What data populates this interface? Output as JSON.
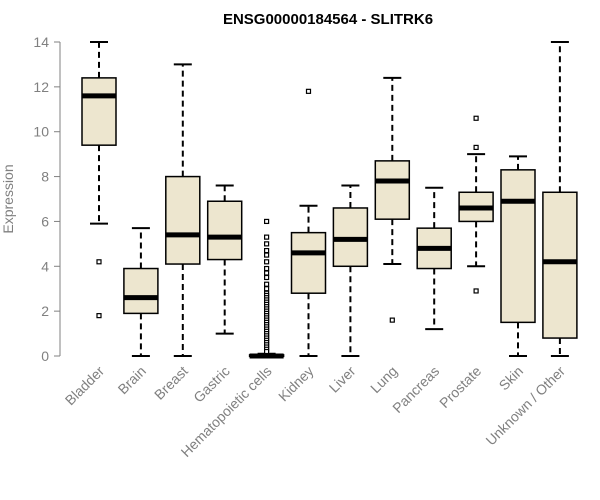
{
  "chart_data": {
    "type": "boxplot",
    "title": "ENSG00000184564 - SLITRK6",
    "xlabel": "",
    "ylabel": "Expression",
    "ylim": [
      0,
      14
    ],
    "yticks": [
      "0",
      "2",
      "4",
      "6",
      "8",
      "10",
      "12",
      "14"
    ],
    "grid": false,
    "colors": {
      "box_fill": "#ede6cf",
      "line": "#000000",
      "axis_text": "#808080"
    },
    "categories": [
      "Bladder",
      "Brain",
      "Breast",
      "Gastric",
      "Hematopoietic cells",
      "Kidney",
      "Liver",
      "Lung",
      "Pancreas",
      "Prostate",
      "Skin",
      "Unknown / Other"
    ],
    "boxes": [
      {
        "category": "Bladder",
        "min": 5.9,
        "q1": 9.4,
        "median": 11.6,
        "q3": 12.4,
        "max": 14.0,
        "outliers": [
          4.2,
          1.8
        ]
      },
      {
        "category": "Brain",
        "min": 0.0,
        "q1": 1.9,
        "median": 2.6,
        "q3": 3.9,
        "max": 5.7,
        "outliers": []
      },
      {
        "category": "Breast",
        "min": 0.0,
        "q1": 4.1,
        "median": 5.4,
        "q3": 8.0,
        "max": 13.0,
        "outliers": []
      },
      {
        "category": "Gastric",
        "min": 1.0,
        "q1": 4.3,
        "median": 5.3,
        "q3": 6.9,
        "max": 7.6,
        "outliers": []
      },
      {
        "category": "Hematopoietic cells",
        "min": 0.0,
        "q1": 0.0,
        "median": 0.0,
        "q3": 0.05,
        "max": 0.1,
        "outliers": [
          6.0,
          5.3,
          5.0,
          4.7,
          4.5,
          4.2,
          3.9,
          3.7,
          3.5,
          3.2,
          3.0,
          2.8,
          2.7,
          2.6,
          2.5,
          2.4,
          2.3,
          2.2,
          2.1,
          2.0,
          1.9,
          1.8,
          1.7,
          1.6,
          1.5,
          1.4,
          1.3,
          1.2,
          1.1,
          1.0,
          0.9,
          0.8,
          0.7,
          0.6,
          0.5,
          0.4,
          0.3,
          0.2
        ]
      },
      {
        "category": "Kidney",
        "min": 0.0,
        "q1": 2.8,
        "median": 4.6,
        "q3": 5.5,
        "max": 6.7,
        "outliers": [
          11.8
        ]
      },
      {
        "category": "Liver",
        "min": 0.0,
        "q1": 4.0,
        "median": 5.2,
        "q3": 6.6,
        "max": 7.6,
        "outliers": []
      },
      {
        "category": "Lung",
        "min": 4.1,
        "q1": 6.1,
        "median": 7.8,
        "q3": 8.7,
        "max": 12.4,
        "outliers": [
          1.6
        ]
      },
      {
        "category": "Pancreas",
        "min": 1.2,
        "q1": 3.9,
        "median": 4.8,
        "q3": 5.7,
        "max": 7.5,
        "outliers": []
      },
      {
        "category": "Prostate",
        "min": 4.0,
        "q1": 6.0,
        "median": 6.6,
        "q3": 7.3,
        "max": 9.0,
        "outliers": [
          10.6,
          9.3,
          2.9
        ]
      },
      {
        "category": "Skin",
        "min": 0.0,
        "q1": 1.5,
        "median": 6.9,
        "q3": 8.3,
        "max": 8.9,
        "outliers": []
      },
      {
        "category": "Unknown / Other",
        "min": 0.0,
        "q1": 0.8,
        "median": 4.2,
        "q3": 7.3,
        "max": 14.0,
        "outliers": []
      }
    ]
  }
}
